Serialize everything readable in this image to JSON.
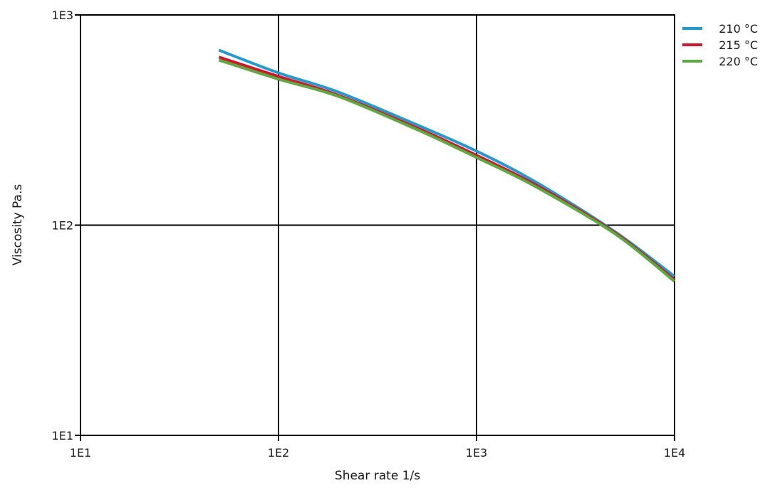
{
  "chart_data": {
    "type": "line",
    "title": "",
    "xlabel": "Shear rate  1/s",
    "ylabel": "Viscosity  Pa.s",
    "x_scale": "log",
    "y_scale": "log",
    "xlim": [
      10,
      10000
    ],
    "ylim": [
      10,
      1000
    ],
    "x_ticks": [
      10,
      100,
      1000,
      10000
    ],
    "x_tick_labels": [
      "1E1",
      "1E2",
      "1E3",
      "1E4"
    ],
    "y_ticks": [
      10,
      100,
      1000
    ],
    "y_tick_labels": [
      "1E1",
      "1E2",
      "1E3"
    ],
    "grid": true,
    "legend_position": "top-right",
    "x": [
      50,
      100,
      200,
      500,
      1000,
      2000,
      5000,
      10000
    ],
    "series": [
      {
        "name": "210 °C",
        "color": "#1e9ad6",
        "values": [
          680,
          530,
          430,
          300,
          225,
          160,
          93,
          57
        ]
      },
      {
        "name": "215 °C",
        "color": "#d7142a",
        "values": [
          630,
          510,
          415,
          290,
          215,
          155,
          92,
          55
        ]
      },
      {
        "name": "220 °C",
        "color": "#5aac3e",
        "values": [
          610,
          495,
          410,
          285,
          210,
          152,
          91,
          54
        ]
      }
    ]
  }
}
